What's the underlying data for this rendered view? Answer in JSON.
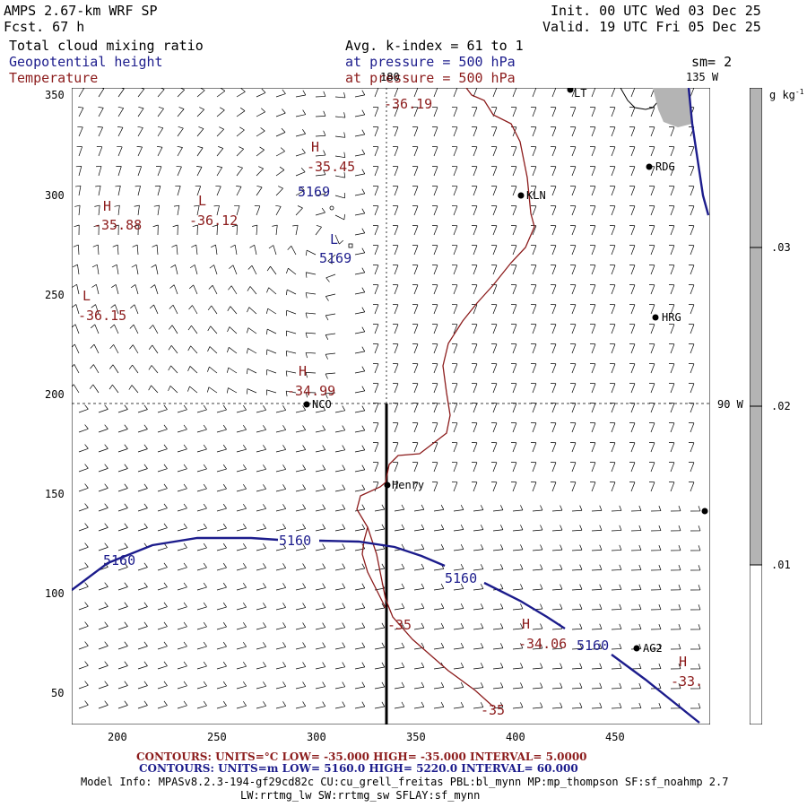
{
  "header": {
    "model": "AMPS 2.67-km WRF SP",
    "forecast": "Fcst.   67 h",
    "init": "Init. 00 UTC Wed 03 Dec 25",
    "valid": "Valid. 19 UTC Fri 05 Dec 25",
    "field1": "Total cloud mixing ratio",
    "field2": "Geopotential height",
    "field3": "Temperature",
    "avg": "Avg. k-index =  61 to   1",
    "pressure1": "at pressure =  500 hPa",
    "pressure2": "at pressure =  500 hPa",
    "sm": "sm= 2",
    "lon135": "135 W",
    "lon90": "90 W",
    "lon180": "180"
  },
  "colorbar": {
    "units": "g kg",
    "units_sup": "-1",
    "ticks": [
      ".03",
      ".02",
      ".01"
    ],
    "colors": {
      "grey": "#b4b4b4",
      "white": "#ffffff"
    }
  },
  "axes": {
    "x_ticks": [
      "200",
      "250",
      "300",
      "350",
      "400",
      "450"
    ],
    "y_ticks": [
      "350",
      "300",
      "250",
      "200",
      "150",
      "100",
      "50"
    ]
  },
  "map_labels": {
    "temp_h1": "H",
    "temp_h1_val": "-35.45",
    "height_l1_val": "5169",
    "temp_h2": "H",
    "temp_h2_val": "-35.88",
    "temp_l1": "L",
    "temp_l1_val": "-36.12",
    "height_l2": "L",
    "height_l2_val": "5169",
    "temp_l2": "L",
    "temp_l2_val": "-36.15",
    "temp_top_val": "-36.19",
    "temp_h3": "H",
    "temp_h3_val": "-34.99",
    "temp_h4": "H",
    "temp_h4_val": "-34.06",
    "temp_h5": "H",
    "temp_h5_val": "-33.",
    "contour_5160_a": "5160",
    "contour_5160_b": "5160",
    "contour_5160_c": "5160",
    "contour_5160_d": "5160",
    "contour_m35_a": "-35",
    "contour_m35_b": "-35"
  },
  "stations": {
    "kln": "KLN",
    "rdg": "RDG",
    "hrg": "HRG",
    "nco": "NCO",
    "henry": "Henry",
    "ag2": "AG2",
    "lt": "LT"
  },
  "footer": {
    "temp_contours": "CONTOURS:  UNITS=°C  LOW= -35.000        HIGH= -35.000        INTERVAL=   5.0000",
    "height_contours": "CONTOURS:  UNITS=m  LOW=  5160.0        HIGH=  5220.0        INTERVAL=   60.000",
    "model_info": "Model Info: MPASv8.2.3-194-gf29cd82c CU:cu_grell_freitas PBL:bl_mynn MP:mp_thompson SF:sf_noahmp 2.7",
    "model_info2": "LW:rrtmg_lw SW:rrtmg_sw SFLAY:sf_mynn"
  },
  "colors": {
    "height_contour": "#1c1c8c",
    "temp_contour": "#8c1c1c",
    "coastline": "#8c1c1c"
  }
}
